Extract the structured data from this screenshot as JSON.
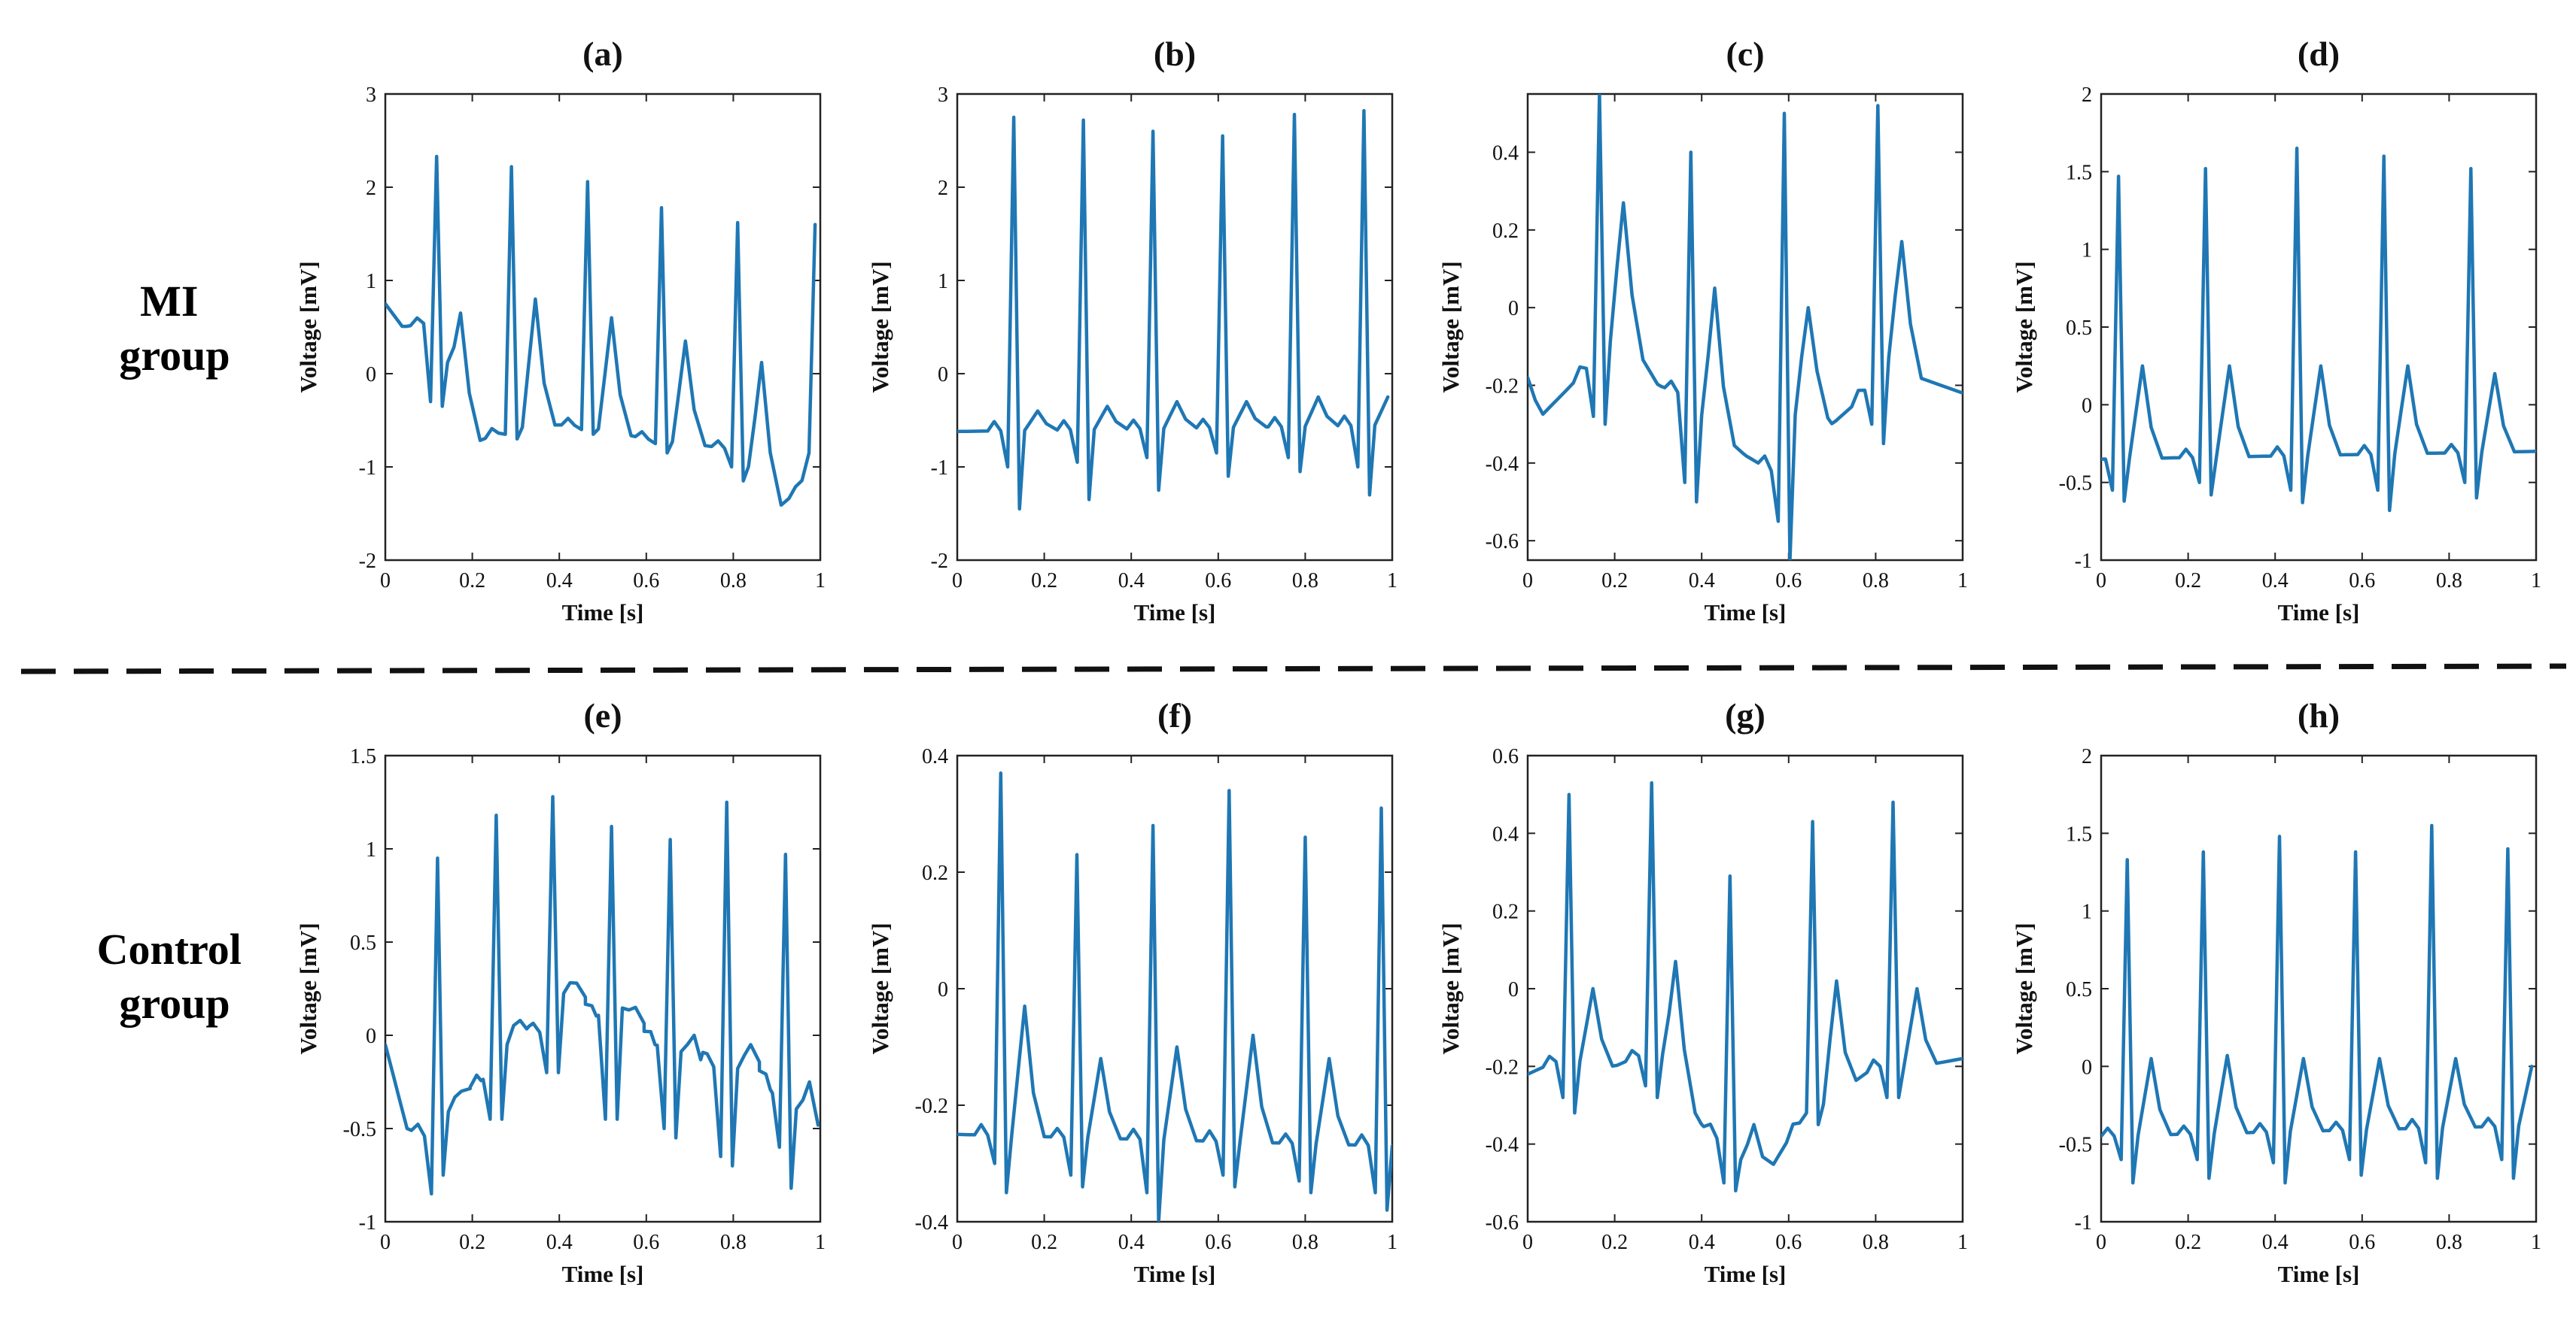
{
  "groups": {
    "mi": [
      "MI",
      "group"
    ],
    "control": [
      "Control",
      "group"
    ]
  },
  "colors": {
    "trace": "#1f77b4",
    "axis": "#222222",
    "text": "#111111",
    "divider": "#111111"
  },
  "chart_data": [
    {
      "type": "line",
      "title": "(a)",
      "xlabel": "Time [s]",
      "ylabel": "Voltage [mV]",
      "xlim": [
        0,
        1
      ],
      "ylim": [
        -2,
        3
      ],
      "xticks": [
        0,
        0.2,
        0.4,
        0.6,
        0.8,
        1
      ],
      "xtick_labels": [
        "0",
        "0.2",
        "0.4",
        "0.6",
        "0.8",
        "1"
      ],
      "yticks": [
        -2,
        -1,
        0,
        1,
        2,
        3
      ],
      "ytick_labels": [
        "-2",
        "-1",
        "0",
        "1",
        "2",
        "3"
      ],
      "baseline": [
        [
          0,
          0.75
        ],
        [
          0.04,
          0.5
        ],
        [
          0.1,
          0.55
        ],
        [
          0.15,
          0.05
        ],
        [
          0.2,
          -0.75
        ],
        [
          0.28,
          -0.6
        ],
        [
          0.35,
          -0.55
        ],
        [
          0.43,
          -0.55
        ],
        [
          0.5,
          -0.6
        ],
        [
          0.6,
          -0.7
        ],
        [
          0.7,
          -0.75
        ],
        [
          0.78,
          -0.8
        ],
        [
          0.85,
          -1.05
        ],
        [
          0.9,
          -1.45
        ],
        [
          0.95,
          -1.25
        ],
        [
          1,
          -0.6
        ]
      ],
      "beats": [
        {
          "t": 0.118,
          "peak": 2.33,
          "q": -0.3,
          "s": -0.35,
          "t_amp": 0.65
        },
        {
          "t": 0.29,
          "peak": 2.22,
          "q": -0.65,
          "s": -0.7,
          "t_amp": 0.8
        },
        {
          "t": 0.465,
          "peak": 2.06,
          "q": -0.6,
          "s": -0.65,
          "t_amp": 0.6
        },
        {
          "t": 0.635,
          "peak": 1.78,
          "q": -0.75,
          "s": -0.85,
          "t_amp": 0.35
        },
        {
          "t": 0.81,
          "peak": 1.62,
          "q": -1.0,
          "s": -1.15,
          "t_amp": 0.12
        },
        {
          "t": 0.988,
          "peak": 1.6,
          "q": -0.85,
          "s": -1.35,
          "t_amp": -0.5
        }
      ]
    },
    {
      "type": "line",
      "title": "(b)",
      "xlabel": "Time [s]",
      "ylabel": "Voltage [mV]",
      "xlim": [
        0,
        1
      ],
      "ylim": [
        -2,
        3
      ],
      "xticks": [
        0,
        0.2,
        0.4,
        0.6,
        0.8,
        1
      ],
      "xtick_labels": [
        "0",
        "0.2",
        "0.4",
        "0.6",
        "0.8",
        "1"
      ],
      "yticks": [
        -2,
        -1,
        0,
        1,
        2,
        3
      ],
      "ytick_labels": [
        "-2",
        "-1",
        "0",
        "1",
        "2",
        "3"
      ],
      "baseline": [
        [
          0,
          -0.62
        ],
        [
          1,
          -0.55
        ]
      ],
      "beats": [
        {
          "t": 0.13,
          "peak": 2.75,
          "q": -1.0,
          "s": -1.45,
          "t_amp": -0.4
        },
        {
          "t": 0.29,
          "peak": 2.72,
          "q": -0.95,
          "s": -1.35,
          "t_amp": -0.35
        },
        {
          "t": 0.45,
          "peak": 2.6,
          "q": -0.9,
          "s": -1.25,
          "t_amp": -0.3
        },
        {
          "t": 0.61,
          "peak": 2.55,
          "q": -0.85,
          "s": -1.1,
          "t_amp": -0.3
        },
        {
          "t": 0.775,
          "peak": 2.78,
          "q": -0.9,
          "s": -1.05,
          "t_amp": -0.25
        },
        {
          "t": 0.935,
          "peak": 2.82,
          "q": -1.0,
          "s": -1.3,
          "t_amp": -0.25
        }
      ]
    },
    {
      "type": "line",
      "title": "(c)",
      "xlabel": "Time [s]",
      "ylabel": "Voltage [mV]",
      "xlim": [
        0,
        1
      ],
      "ylim": [
        -0.65,
        0.55
      ],
      "xticks": [
        0,
        0.2,
        0.4,
        0.6,
        0.8,
        1
      ],
      "xtick_labels": [
        "0",
        "0.2",
        "0.4",
        "0.6",
        "0.8",
        "1"
      ],
      "yticks": [
        -0.6,
        -0.4,
        -0.2,
        0,
        0.2,
        0.4
      ],
      "ytick_labels": [
        "-0.6",
        "-0.4",
        "-0.2",
        "0",
        "0.2",
        "0.4"
      ],
      "baseline": [
        [
          0,
          -0.18
        ],
        [
          0.03,
          -0.28
        ],
        [
          0.1,
          -0.2
        ],
        [
          0.14,
          -0.15
        ],
        [
          0.22,
          -0.05
        ],
        [
          0.3,
          -0.2
        ],
        [
          0.35,
          -0.22
        ],
        [
          0.42,
          -0.3
        ],
        [
          0.5,
          -0.38
        ],
        [
          0.56,
          -0.42
        ],
        [
          0.6,
          -0.3
        ],
        [
          0.65,
          -0.22
        ],
        [
          0.7,
          -0.3
        ],
        [
          0.75,
          -0.25
        ],
        [
          0.85,
          -0.1
        ],
        [
          0.9,
          -0.18
        ],
        [
          1,
          -0.22
        ]
      ],
      "beats": [
        {
          "t": 0.165,
          "peak": 0.55,
          "q": -0.28,
          "s": -0.3,
          "t_amp": 0.27
        },
        {
          "t": 0.375,
          "peak": 0.4,
          "q": -0.45,
          "s": -0.5,
          "t_amp": 0.05
        },
        {
          "t": 0.59,
          "peak": 0.5,
          "q": -0.55,
          "s": -0.65,
          "t_amp": 0.0
        },
        {
          "t": 0.805,
          "peak": 0.52,
          "q": -0.3,
          "s": -0.35,
          "t_amp": 0.17
        }
      ]
    },
    {
      "type": "line",
      "title": "(d)",
      "xlabel": "Time [s]",
      "ylabel": "Voltage [mV]",
      "xlim": [
        0,
        1
      ],
      "ylim": [
        -1,
        2
      ],
      "xticks": [
        0,
        0.2,
        0.4,
        0.6,
        0.8,
        1
      ],
      "xtick_labels": [
        "0",
        "0.2",
        "0.4",
        "0.6",
        "0.8",
        "1"
      ],
      "yticks": [
        -1,
        -0.5,
        0,
        0.5,
        1,
        1.5,
        2
      ],
      "ytick_labels": [
        "-1",
        "-0.5",
        "0",
        "0.5",
        "1",
        "1.5",
        "2"
      ],
      "baseline": [
        [
          0,
          -0.35
        ],
        [
          1,
          -0.3
        ]
      ],
      "beats": [
        {
          "t": 0.04,
          "peak": 1.47,
          "q": -0.55,
          "s": -0.62,
          "t_amp": 0.25
        },
        {
          "t": 0.24,
          "peak": 1.52,
          "q": -0.5,
          "s": -0.58,
          "t_amp": 0.25
        },
        {
          "t": 0.45,
          "peak": 1.65,
          "q": -0.55,
          "s": -0.63,
          "t_amp": 0.25
        },
        {
          "t": 0.65,
          "peak": 1.6,
          "q": -0.55,
          "s": -0.68,
          "t_amp": 0.25
        },
        {
          "t": 0.85,
          "peak": 1.52,
          "q": -0.5,
          "s": -0.6,
          "t_amp": 0.2
        }
      ]
    },
    {
      "type": "line",
      "title": "(e)",
      "xlabel": "Time [s]",
      "ylabel": "Voltage [mV]",
      "xlim": [
        0,
        1
      ],
      "ylim": [
        -1,
        1.5
      ],
      "xticks": [
        0,
        0.2,
        0.4,
        0.6,
        0.8,
        1
      ],
      "xtick_labels": [
        "0",
        "0.2",
        "0.4",
        "0.6",
        "0.8",
        "1"
      ],
      "yticks": [
        -1,
        -0.5,
        0,
        0.5,
        1,
        1.5
      ],
      "ytick_labels": [
        "-1",
        "-0.5",
        "0",
        "0.5",
        "1",
        "1.5"
      ],
      "baseline": [
        [
          0,
          -0.05
        ],
        [
          0.05,
          -0.5
        ],
        [
          0.1,
          -0.55
        ],
        [
          0.18,
          -0.3
        ],
        [
          0.25,
          -0.2
        ],
        [
          0.3,
          0.05
        ],
        [
          0.38,
          0.0
        ],
        [
          0.42,
          0.3
        ],
        [
          0.48,
          0.1
        ],
        [
          0.55,
          0.15
        ],
        [
          0.62,
          -0.05
        ],
        [
          0.7,
          -0.1
        ],
        [
          0.78,
          -0.2
        ],
        [
          0.85,
          -0.15
        ],
        [
          0.9,
          -0.35
        ],
        [
          0.95,
          -0.4
        ],
        [
          1,
          -0.62
        ]
      ],
      "beats": [
        {
          "t": 0.12,
          "peak": 0.95,
          "q": -0.85,
          "s": -0.75,
          "t_amp": -0.3
        },
        {
          "t": 0.255,
          "peak": 1.18,
          "q": -0.45,
          "s": -0.45,
          "t_amp": 0.08
        },
        {
          "t": 0.385,
          "peak": 1.28,
          "q": -0.2,
          "s": -0.2,
          "t_amp": 0.28
        },
        {
          "t": 0.52,
          "peak": 1.12,
          "q": -0.45,
          "s": -0.45,
          "t_amp": 0.15
        },
        {
          "t": 0.655,
          "peak": 1.05,
          "q": -0.5,
          "s": -0.55,
          "t_amp": 0.0
        },
        {
          "t": 0.785,
          "peak": 1.25,
          "q": -0.65,
          "s": -0.7,
          "t_amp": -0.05
        },
        {
          "t": 0.92,
          "peak": 0.97,
          "q": -0.6,
          "s": -0.82,
          "t_amp": -0.25
        }
      ]
    },
    {
      "type": "line",
      "title": "(f)",
      "xlabel": "Time [s]",
      "ylabel": "Voltage [mV]",
      "xlim": [
        0,
        1
      ],
      "ylim": [
        -0.4,
        0.4
      ],
      "xticks": [
        0,
        0.2,
        0.4,
        0.6,
        0.8,
        1
      ],
      "xtick_labels": [
        "0",
        "0.2",
        "0.4",
        "0.6",
        "0.8",
        "1"
      ],
      "yticks": [
        -0.4,
        -0.2,
        0,
        0.2,
        0.4
      ],
      "ytick_labels": [
        "-0.4",
        "-0.2",
        "0",
        "0.2",
        "0.4"
      ],
      "baseline": [
        [
          0,
          -0.25
        ],
        [
          1,
          -0.27
        ]
      ],
      "beats": [
        {
          "t": 0.1,
          "peak": 0.37,
          "q": -0.3,
          "s": -0.35,
          "t_amp": -0.03
        },
        {
          "t": 0.275,
          "peak": 0.23,
          "q": -0.32,
          "s": -0.34,
          "t_amp": -0.12
        },
        {
          "t": 0.45,
          "peak": 0.28,
          "q": -0.35,
          "s": -0.4,
          "t_amp": -0.1
        },
        {
          "t": 0.625,
          "peak": 0.34,
          "q": -0.32,
          "s": -0.34,
          "t_amp": -0.08
        },
        {
          "t": 0.8,
          "peak": 0.26,
          "q": -0.33,
          "s": -0.35,
          "t_amp": -0.12
        },
        {
          "t": 0.975,
          "peak": 0.31,
          "q": -0.35,
          "s": -0.38,
          "t_amp": -0.1
        }
      ]
    },
    {
      "type": "line",
      "title": "(g)",
      "xlabel": "Time [s]",
      "ylabel": "Voltage [mV]",
      "xlim": [
        0,
        1
      ],
      "ylim": [
        -0.6,
        0.6
      ],
      "xticks": [
        0,
        0.2,
        0.4,
        0.6,
        0.8,
        1
      ],
      "xtick_labels": [
        "0",
        "0.2",
        "0.4",
        "0.6",
        "0.8",
        "1"
      ],
      "yticks": [
        -0.6,
        -0.4,
        -0.2,
        0,
        0.2,
        0.4,
        0.6
      ],
      "ytick_labels": [
        "-0.6",
        "-0.4",
        "-0.2",
        "0",
        "0.2",
        "0.4",
        "0.6"
      ],
      "baseline": [
        [
          0,
          -0.22
        ],
        [
          0.08,
          -0.18
        ],
        [
          0.2,
          -0.2
        ],
        [
          0.3,
          -0.15
        ],
        [
          0.4,
          -0.35
        ],
        [
          0.5,
          -0.45
        ],
        [
          0.55,
          -0.48
        ],
        [
          0.62,
          -0.35
        ],
        [
          0.7,
          -0.28
        ],
        [
          0.8,
          -0.2
        ],
        [
          0.9,
          -0.2
        ],
        [
          1,
          -0.18
        ]
      ],
      "beats": [
        {
          "t": 0.095,
          "peak": 0.5,
          "q": -0.28,
          "s": -0.32,
          "t_amp": 0.0
        },
        {
          "t": 0.285,
          "peak": 0.53,
          "q": -0.25,
          "s": -0.28,
          "t_amp": 0.07
        },
        {
          "t": 0.465,
          "peak": 0.29,
          "q": -0.5,
          "s": -0.52,
          "t_amp": -0.35
        },
        {
          "t": 0.655,
          "peak": 0.43,
          "q": -0.32,
          "s": -0.35,
          "t_amp": 0.02
        },
        {
          "t": 0.84,
          "peak": 0.48,
          "q": -0.28,
          "s": -0.28,
          "t_amp": 0.0
        }
      ]
    },
    {
      "type": "line",
      "title": "(h)",
      "xlabel": "Time [s]",
      "ylabel": "Voltage [mV]",
      "xlim": [
        0,
        1
      ],
      "ylim": [
        -1,
        2
      ],
      "xticks": [
        0,
        0.2,
        0.4,
        0.6,
        0.8,
        1
      ],
      "xtick_labels": [
        "0",
        "0.2",
        "0.4",
        "0.6",
        "0.8",
        "1"
      ],
      "yticks": [
        -1,
        -0.5,
        0,
        0.5,
        1,
        1.5,
        2
      ],
      "ytick_labels": [
        "-1",
        "-0.5",
        "0",
        "0.5",
        "1",
        "1.5",
        "2"
      ],
      "baseline": [
        [
          0,
          -0.45
        ],
        [
          1,
          -0.38
        ]
      ],
      "beats": [
        {
          "t": 0.06,
          "peak": 1.33,
          "q": -0.6,
          "s": -0.75,
          "t_amp": 0.05
        },
        {
          "t": 0.235,
          "peak": 1.38,
          "q": -0.6,
          "s": -0.72,
          "t_amp": 0.07
        },
        {
          "t": 0.41,
          "peak": 1.48,
          "q": -0.62,
          "s": -0.75,
          "t_amp": 0.05
        },
        {
          "t": 0.585,
          "peak": 1.38,
          "q": -0.6,
          "s": -0.7,
          "t_amp": 0.05
        },
        {
          "t": 0.76,
          "peak": 1.55,
          "q": -0.62,
          "s": -0.72,
          "t_amp": 0.05
        },
        {
          "t": 0.935,
          "peak": 1.4,
          "q": -0.6,
          "s": -0.72,
          "t_amp": 0.0
        }
      ]
    }
  ]
}
